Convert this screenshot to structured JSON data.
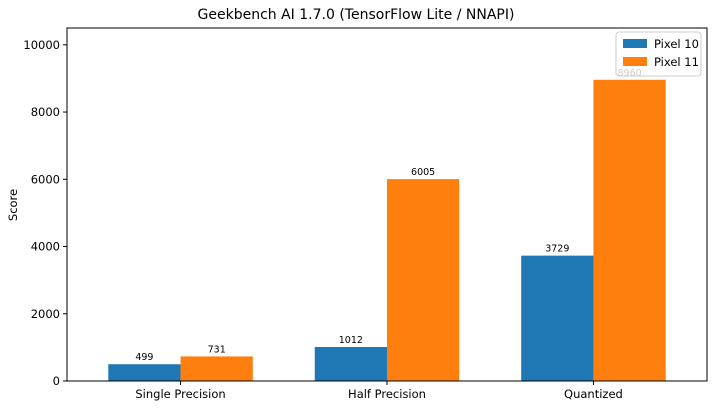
{
  "chart_data": {
    "type": "bar",
    "title": "Geekbench AI 1.7.0 (TensorFlow Lite / NNAPI)",
    "xlabel": "",
    "ylabel": "Score",
    "categories": [
      "Single Precision",
      "Half Precision",
      "Quantized"
    ],
    "series": [
      {
        "name": "Pixel 10",
        "values": [
          499,
          1012,
          3729
        ],
        "color": "#1f77b4"
      },
      {
        "name": "Pixel 11",
        "values": [
          731,
          6005,
          8960
        ],
        "color": "#ff7f0e"
      }
    ],
    "ylim": [
      0,
      10500
    ],
    "yticks": [
      0,
      2000,
      4000,
      6000,
      8000,
      10000
    ],
    "grid": false,
    "legend_position": "top-right"
  }
}
